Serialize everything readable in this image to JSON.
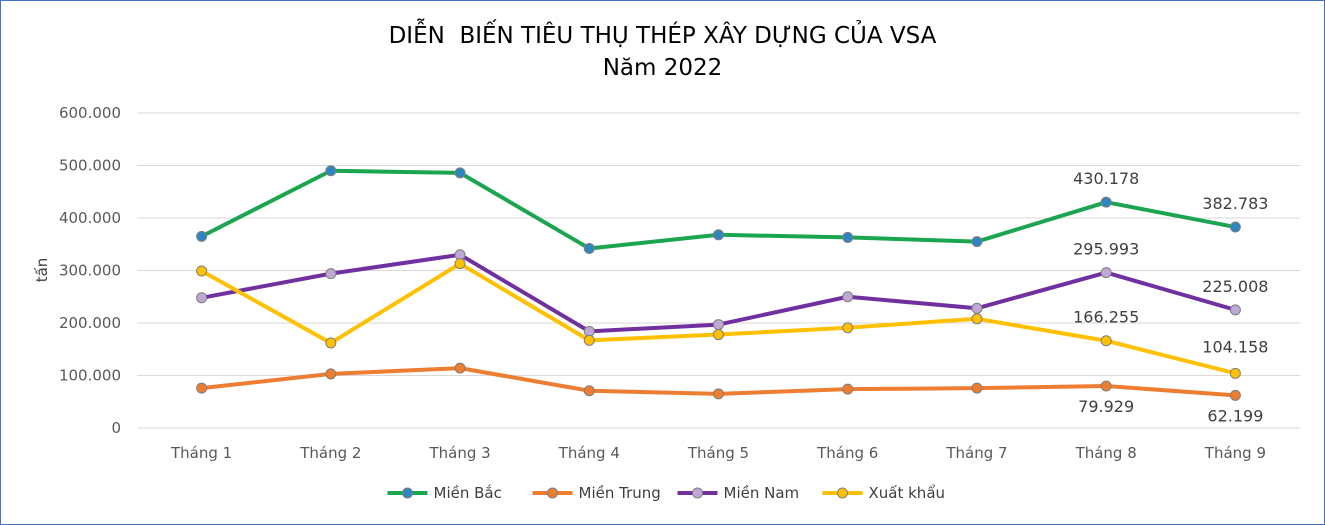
{
  "chart_data": {
    "type": "line",
    "title": "DIỄN  BIẾN TIÊU THỤ THÉP XÂY DỰNG CỦA VSA",
    "subtitle": "Năm 2022",
    "xlabel": "",
    "ylabel": "tấn",
    "ylim": [
      0,
      600000
    ],
    "y_ticks": [
      0,
      100000,
      200000,
      300000,
      400000,
      500000,
      600000
    ],
    "y_tick_labels": [
      "0",
      "100.000",
      "200.000",
      "300.000",
      "400.000",
      "500.000",
      "600.000"
    ],
    "grid": true,
    "legend_position": "bottom",
    "categories": [
      "Tháng 1",
      "Tháng 2",
      "Tháng 3",
      "Tháng 4",
      "Tháng 5",
      "Tháng 6",
      "Tháng 7",
      "Tháng 8",
      "Tháng 9"
    ],
    "series": [
      {
        "name": "Miền Bắc",
        "color": "#1BA550",
        "marker_fill": "#2E86C1",
        "values": [
          365000,
          490000,
          486000,
          342000,
          368000,
          363000,
          355000,
          430178,
          382783
        ],
        "data_labels": {
          "7": "430.178",
          "8": "382.783"
        }
      },
      {
        "name": "Miền Trung",
        "color": "#ED7D31",
        "marker_fill": "#ED7D31",
        "values": [
          76000,
          103000,
          114000,
          71000,
          65000,
          74000,
          76000,
          79929,
          62199
        ],
        "data_labels": {
          "7": "79.929",
          "8": "62.199"
        }
      },
      {
        "name": "Miền Nam",
        "color": "#7030A0",
        "marker_fill": "#BFA8D6",
        "values": [
          248000,
          294000,
          330000,
          184000,
          197000,
          250000,
          228000,
          295993,
          225008
        ],
        "data_labels": {
          "7": "295.993",
          "8": "225.008"
        }
      },
      {
        "name": "Xuất khẩu",
        "color": "#FFC000",
        "marker_fill": "#FFC000",
        "values": [
          299000,
          162000,
          313000,
          167000,
          178000,
          191000,
          208000,
          166255,
          104158
        ],
        "data_labels": {
          "7": "166.255",
          "8": "104.158"
        }
      }
    ]
  }
}
